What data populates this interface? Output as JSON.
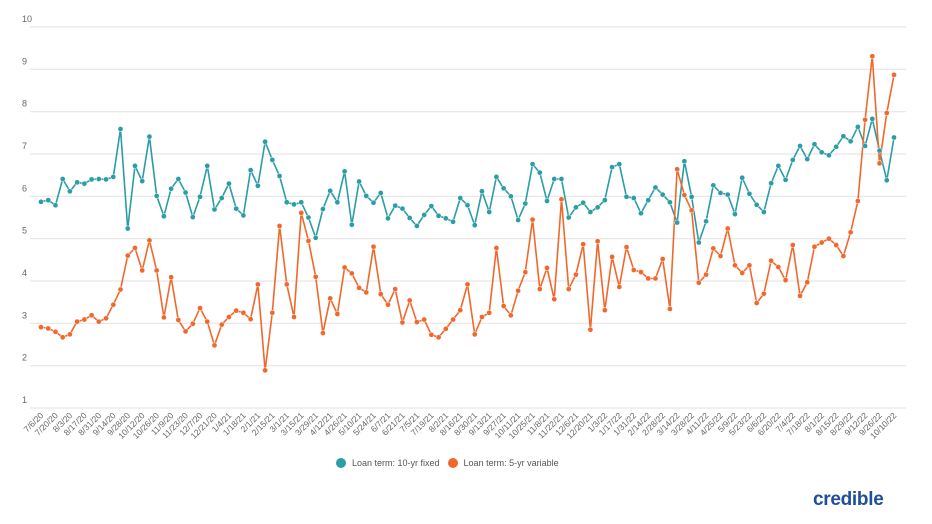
{
  "chart_data": {
    "type": "line",
    "title": "",
    "xlabel": "",
    "ylabel": "",
    "ylim": [
      1,
      10
    ],
    "y_ticks": [
      1,
      2,
      3,
      4,
      5,
      6,
      7,
      8,
      9,
      10
    ],
    "grid": true,
    "legend_position": "bottom",
    "x_tick_labels": [
      "7/6/20",
      "7/20/20",
      "8/3/20",
      "8/17/20",
      "8/31/20",
      "9/14/20",
      "9/28/20",
      "10/12/20",
      "10/26/20",
      "11/9/20",
      "11/23/20",
      "12/7/20",
      "12/21/20",
      "1/4/21",
      "1/18/21",
      "2/1/21",
      "2/15/21",
      "3/1/21",
      "3/15/21",
      "3/29/21",
      "4/12/21",
      "4/26/21",
      "5/10/21",
      "5/24/21",
      "6/7/21",
      "6/21/21",
      "7/5/21",
      "7/19/21",
      "8/2/21",
      "8/16/21",
      "8/30/21",
      "9/13/21",
      "9/27/21",
      "10/11/21",
      "10/25/21",
      "11/8/21",
      "11/22/21",
      "12/6/21",
      "12/20/21",
      "1/3/22",
      "1/17/22",
      "1/31/22",
      "2/14/22",
      "2/28/22",
      "3/14/22",
      "3/28/22",
      "4/11/22",
      "4/25/22",
      "5/9/22",
      "5/23/22",
      "6/6/22",
      "6/20/22",
      "7/4/22",
      "7/18/22",
      "8/1/22",
      "8/15/22",
      "8/29/22",
      "9/12/22",
      "9/26/22",
      "10/10/22"
    ],
    "series": [
      {
        "name": "Loan term: 10-yr fixed",
        "color": "#2a9da6",
        "values": [
          5.87,
          5.91,
          5.79,
          6.41,
          6.12,
          6.33,
          6.3,
          6.4,
          6.41,
          6.4,
          6.46,
          7.59,
          5.24,
          6.72,
          6.36,
          7.41,
          6.01,
          5.53,
          6.18,
          6.41,
          6.09,
          5.51,
          5.99,
          6.72,
          5.69,
          5.96,
          6.3,
          5.71,
          5.55,
          6.62,
          6.25,
          7.29,
          6.86,
          6.48,
          5.86,
          5.81,
          5.86,
          5.5,
          5.02,
          5.7,
          6.13,
          5.86,
          6.59,
          5.33,
          6.35,
          6.01,
          5.85,
          6.08,
          5.48,
          5.78,
          5.71,
          5.49,
          5.3,
          5.56,
          5.77,
          5.54,
          5.48,
          5.4,
          5.96,
          5.79,
          5.32,
          6.12,
          5.63,
          6.46,
          6.19,
          6.0,
          5.44,
          5.83,
          6.76,
          6.56,
          5.89,
          6.41,
          6.41,
          5.5,
          5.74,
          5.85,
          5.63,
          5.74,
          5.91,
          6.69,
          6.76,
          5.99,
          5.96,
          5.6,
          5.91,
          6.21,
          6.04,
          5.86,
          5.38,
          6.83,
          5.99,
          4.91,
          5.41,
          6.26,
          6.08,
          6.04,
          5.58,
          6.44,
          6.06,
          5.8,
          5.63,
          6.31,
          6.72,
          6.39,
          6.86,
          7.19,
          6.88,
          7.23,
          7.04,
          6.97,
          7.17,
          7.42,
          7.3,
          7.64,
          7.19,
          7.83,
          7.08,
          6.38,
          7.39
        ]
      },
      {
        "name": "Loan term: 5-yr variable",
        "color": "#f0682c",
        "values": [
          2.91,
          2.88,
          2.8,
          2.67,
          2.74,
          3.04,
          3.09,
          3.19,
          3.04,
          3.12,
          3.44,
          3.8,
          4.6,
          4.78,
          4.25,
          4.96,
          4.25,
          3.14,
          4.09,
          3.08,
          2.81,
          2.99,
          3.36,
          3.04,
          2.48,
          2.97,
          3.15,
          3.3,
          3.25,
          3.1,
          3.92,
          1.89,
          3.25,
          5.3,
          3.92,
          3.15,
          5.61,
          4.95,
          4.1,
          2.77,
          3.59,
          3.22,
          4.32,
          4.18,
          3.84,
          3.73,
          4.81,
          3.69,
          3.44,
          3.81,
          3.02,
          3.54,
          3.03,
          3.09,
          2.73,
          2.67,
          2.87,
          3.09,
          3.31,
          3.92,
          2.74,
          3.15,
          3.25,
          4.78,
          3.41,
          3.19,
          3.77,
          4.21,
          5.45,
          3.81,
          4.31,
          3.57,
          5.93,
          3.81,
          4.15,
          4.87,
          2.85,
          4.94,
          3.31,
          4.57,
          3.86,
          4.8,
          4.26,
          4.21,
          4.06,
          4.06,
          4.52,
          3.34,
          6.64,
          6.03,
          5.67,
          3.96,
          4.15,
          4.77,
          4.59,
          5.24,
          4.37,
          4.19,
          4.37,
          3.48,
          3.7,
          4.48,
          4.33,
          4.02,
          4.85,
          3.65,
          3.97,
          4.81,
          4.91,
          5.0,
          4.85,
          4.59,
          5.15,
          5.89,
          7.81,
          9.31,
          6.78,
          7.97,
          8.87
        ]
      }
    ]
  },
  "legend": {
    "items": [
      {
        "label": "Loan term: 10-yr fixed",
        "color": "#2a9da6"
      },
      {
        "label": "Loan term: 5-yr variable",
        "color": "#f0682c"
      }
    ]
  },
  "brand": {
    "logo_text": "credible",
    "color": "#1f4e9a"
  }
}
